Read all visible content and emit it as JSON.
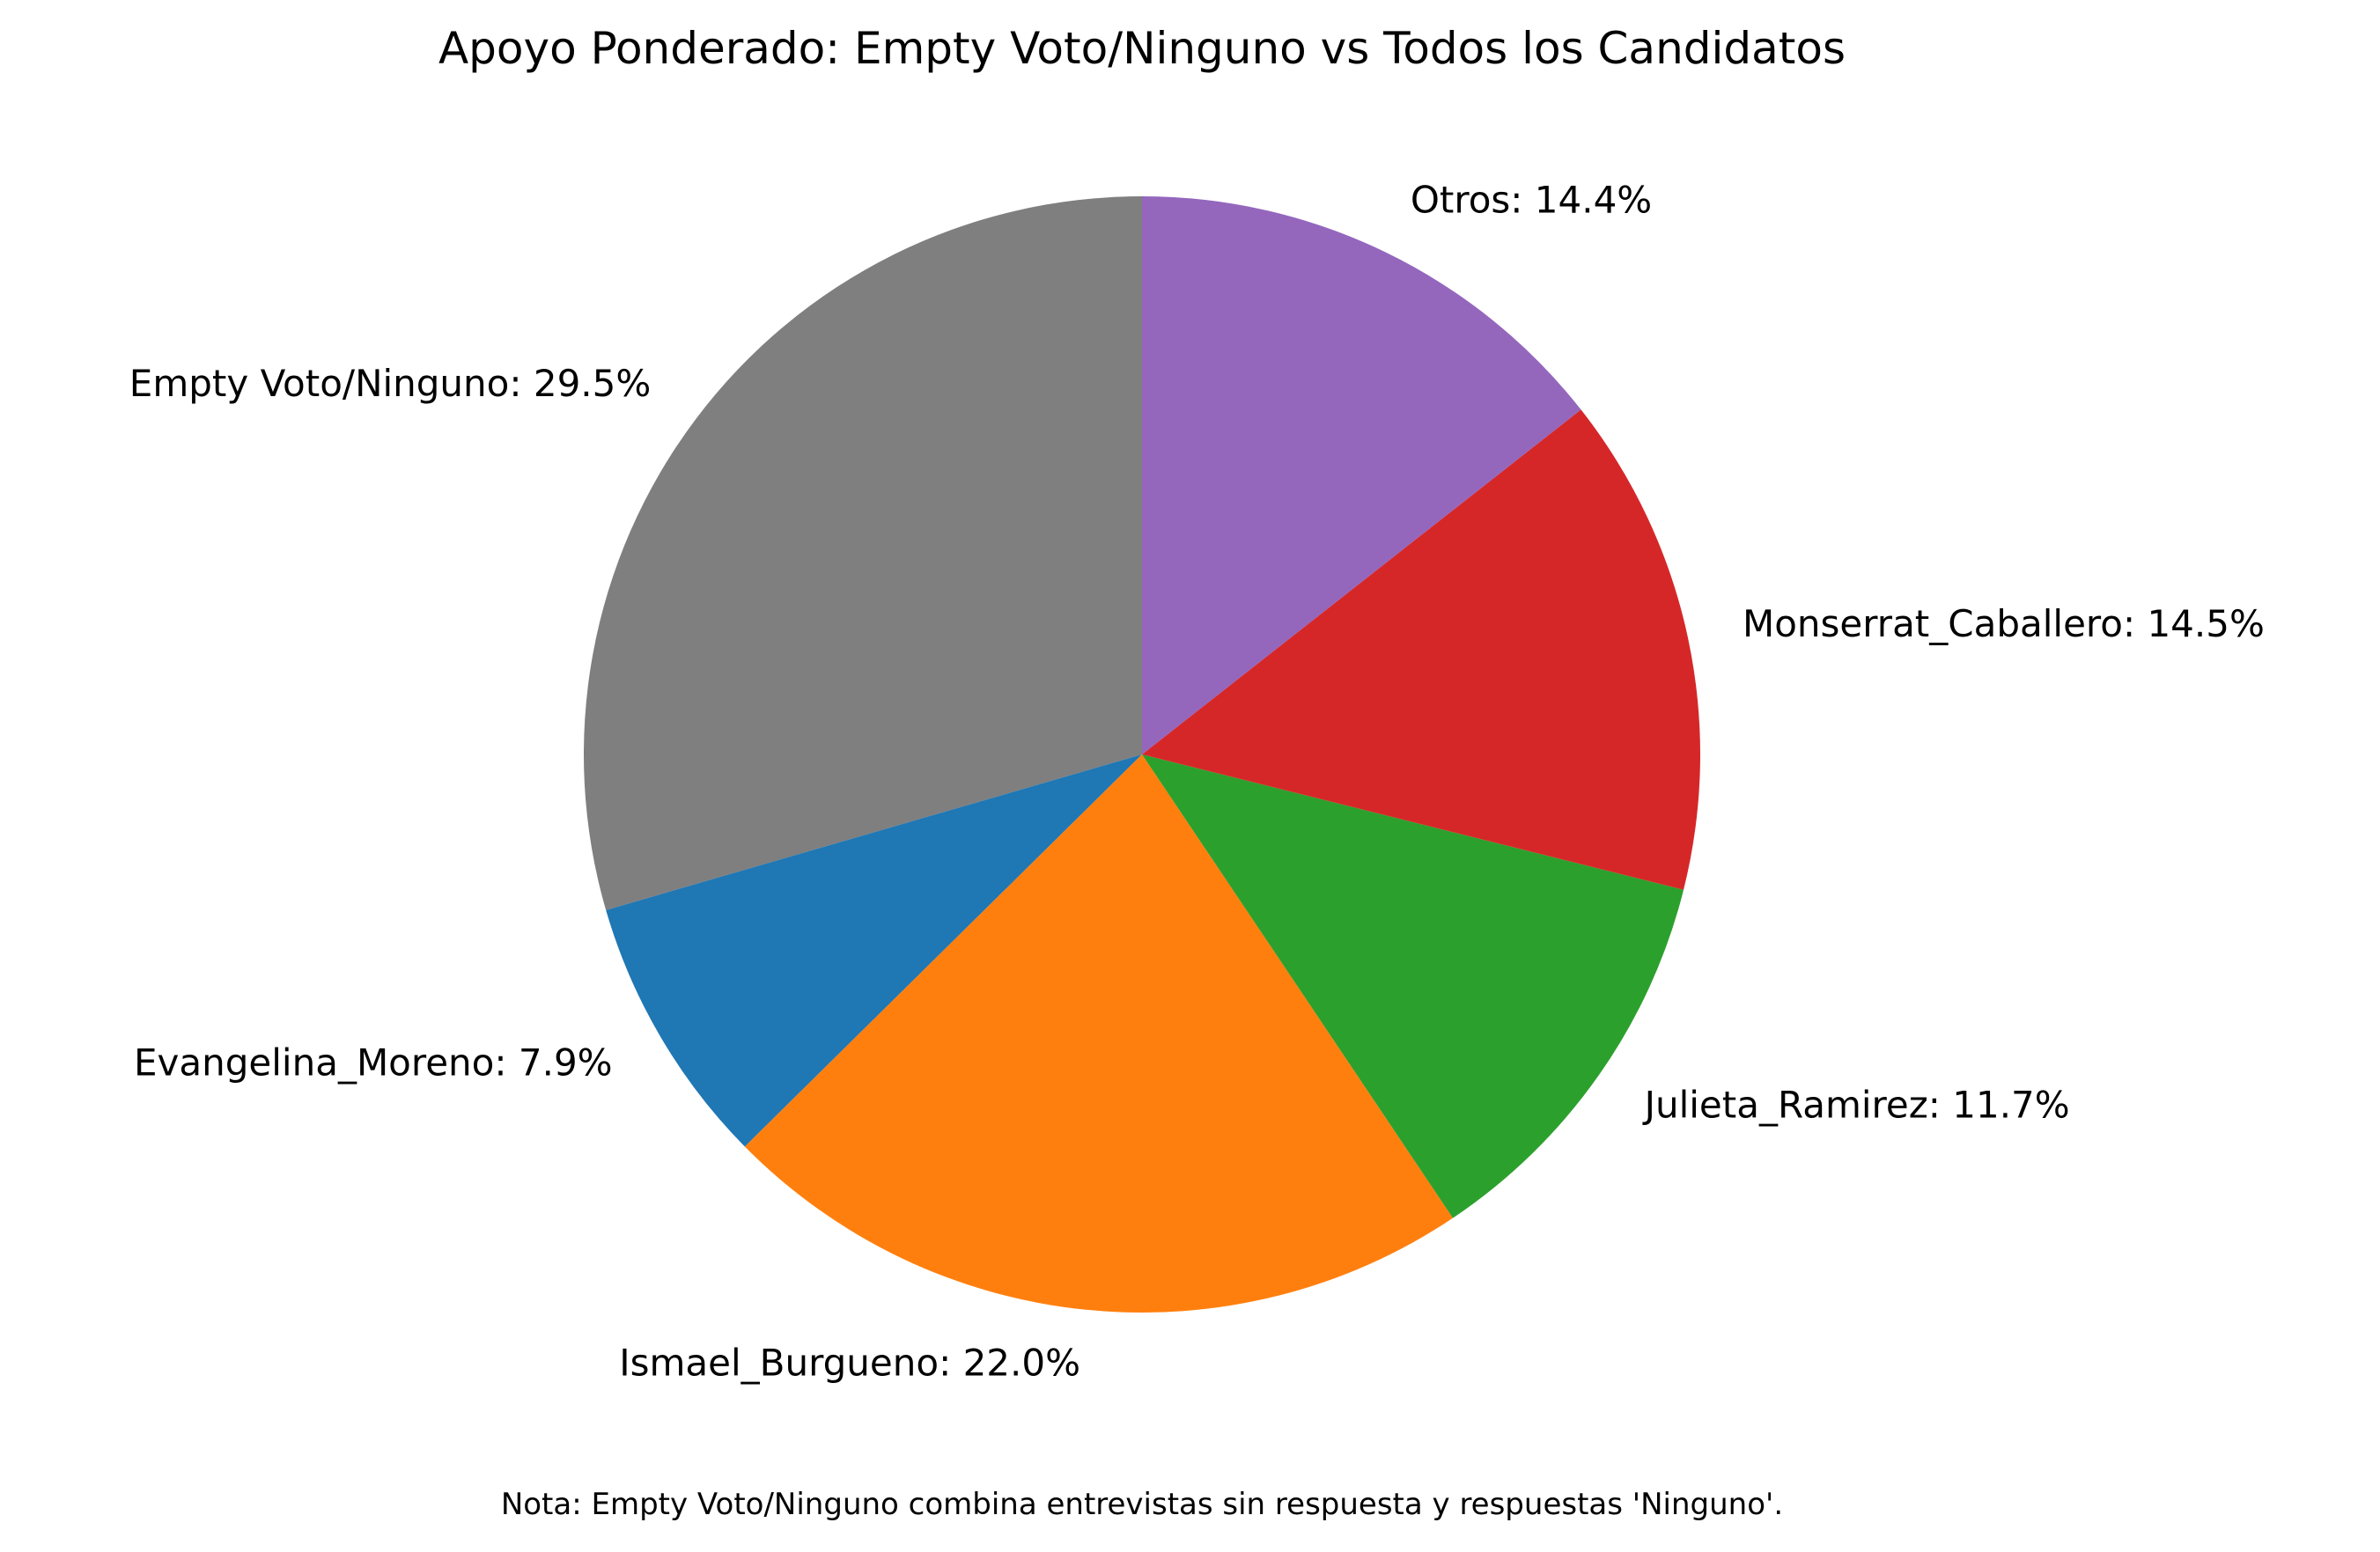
{
  "chart_data": {
    "type": "pie",
    "title": "Apoyo Ponderado: Empty Voto/Ninguno vs Todos los Candidatos",
    "start_angle_deg": 90,
    "direction": "counterclockwise",
    "slices": [
      {
        "label": "Empty Voto/Ninguno",
        "value": 29.5,
        "label_text": "Empty Voto/Ninguno: 29.5%",
        "color": "#7f7f7f"
      },
      {
        "label": "Evangelina_Moreno",
        "value": 7.9,
        "label_text": "Evangelina_Moreno: 7.9%",
        "color": "#1f77b4"
      },
      {
        "label": "Ismael_Burgueno",
        "value": 22.0,
        "label_text": "Ismael_Burgueno: 22.0%",
        "color": "#ff7f0e"
      },
      {
        "label": "Julieta_Ramirez",
        "value": 11.7,
        "label_text": "Julieta_Ramirez: 11.7%",
        "color": "#2ca02c"
      },
      {
        "label": "Monserrat_Caballero",
        "value": 14.5,
        "label_text": "Monserrat_Caballero: 14.5%",
        "color": "#d62728"
      },
      {
        "label": "Otros",
        "value": 14.4,
        "label_text": "Otros: 14.4%",
        "color": "#9467bd"
      }
    ],
    "note": "Nota: Empty Voto/Ninguno combina entrevistas sin respuesta y respuestas 'Ninguno'."
  }
}
